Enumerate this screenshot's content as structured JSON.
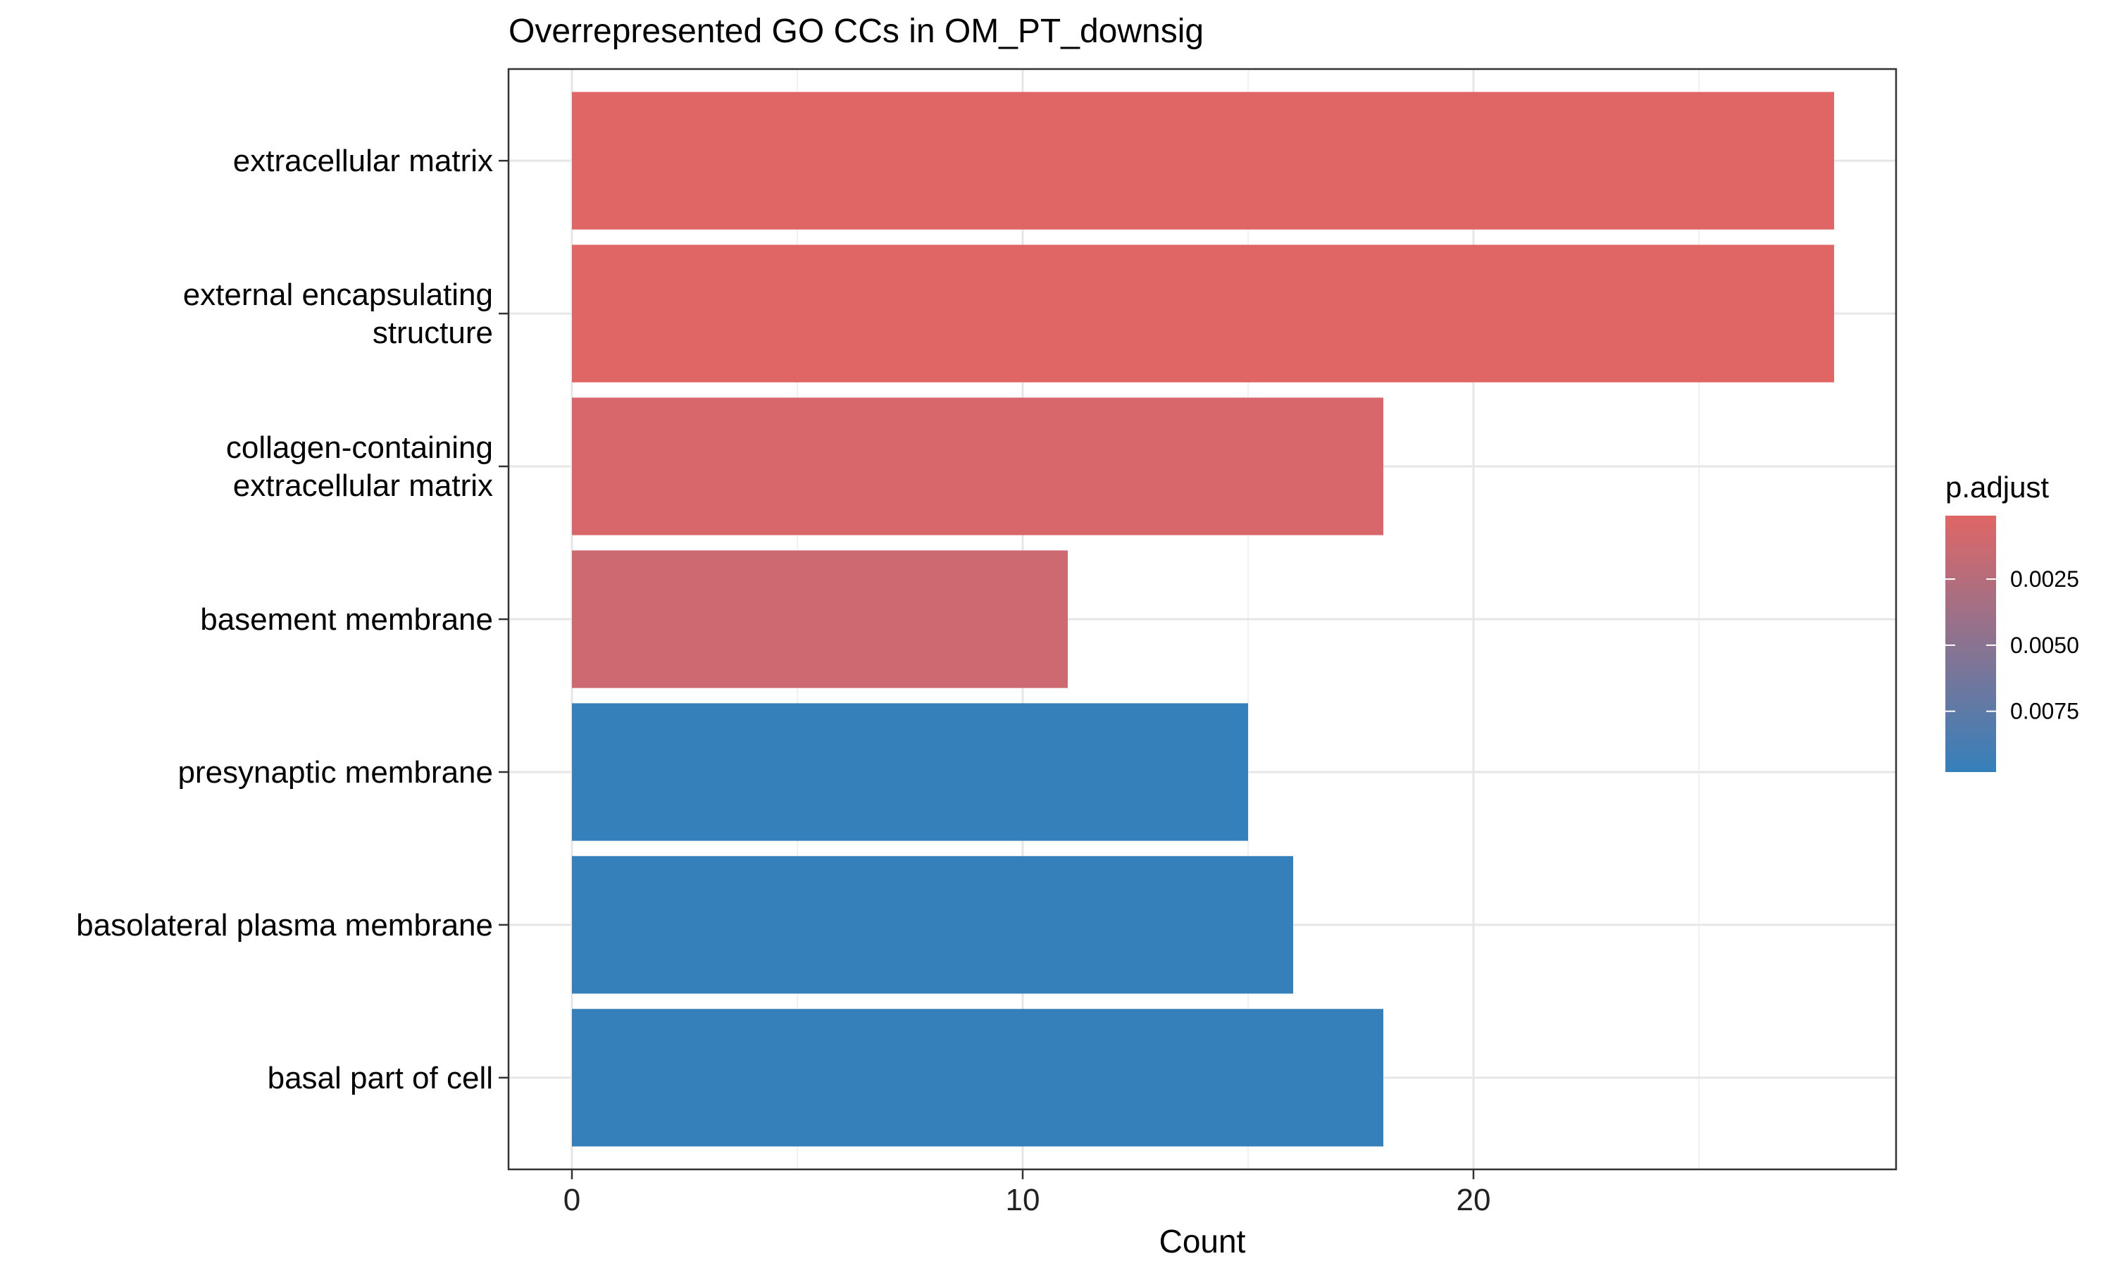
{
  "chart_data": {
    "type": "bar",
    "orientation": "horizontal",
    "title": "Overrepresented GO CCs in OM_PT_downsig",
    "xlabel": "Count",
    "ylabel": "",
    "xlim": [
      -1.4,
      29.3
    ],
    "xticks": [
      0,
      10,
      20
    ],
    "minor_xticks": [
      5,
      15,
      25
    ],
    "grid": true,
    "categories": [
      [
        "extracellular matrix"
      ],
      [
        "external encapsulating",
        "structure"
      ],
      [
        "collagen-containing",
        "extracellular matrix"
      ],
      [
        "basement membrane"
      ],
      [
        "presynaptic membrane"
      ],
      [
        "basolateral plasma membrane"
      ],
      [
        "basal part of cell"
      ]
    ],
    "values": [
      28,
      28,
      18,
      11,
      15,
      16,
      18
    ],
    "p_adjust": [
      0.0001,
      0.0001,
      0.0006,
      0.0012,
      0.0098,
      0.0098,
      0.0098
    ],
    "legend": {
      "title": "p.adjust",
      "placement": "right",
      "ticks": [
        0.0025,
        0.005,
        0.0075
      ],
      "tick_labels": [
        "0.0025",
        "0.0050",
        "0.0075"
      ],
      "range": [
        0.0001,
        0.0098
      ],
      "color_low": "#e06666",
      "color_high": "#3580bb"
    },
    "colors": {
      "panel_border": "#333333",
      "grid_major": "#e6e6e6",
      "grid_minor": "#f2f2f2"
    }
  }
}
